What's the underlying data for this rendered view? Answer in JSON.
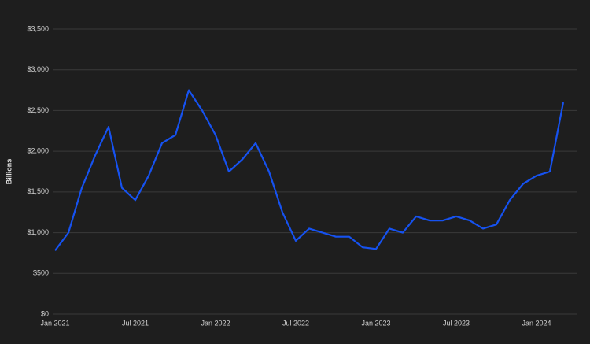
{
  "chart_data": {
    "type": "line",
    "y_label": "Billions",
    "x": [
      "2021-01",
      "2021-02",
      "2021-03",
      "2021-04",
      "2021-05",
      "2021-06",
      "2021-07",
      "2021-08",
      "2021-09",
      "2021-10",
      "2021-11",
      "2021-12",
      "2022-01",
      "2022-02",
      "2022-03",
      "2022-04",
      "2022-05",
      "2022-06",
      "2022-07",
      "2022-08",
      "2022-09",
      "2022-10",
      "2022-11",
      "2022-12",
      "2023-01",
      "2023-02",
      "2023-03",
      "2023-04",
      "2023-05",
      "2023-06",
      "2023-07",
      "2023-08",
      "2023-09",
      "2023-10",
      "2023-11",
      "2023-12",
      "2024-01",
      "2024-02",
      "2024-03"
    ],
    "series": [
      {
        "color": "#1652f0",
        "values": [
          780,
          1000,
          1550,
          1950,
          2300,
          1550,
          1400,
          1700,
          2100,
          2200,
          2750,
          2500,
          2200,
          1750,
          1900,
          2100,
          1750,
          1250,
          900,
          1050,
          1000,
          950,
          950,
          820,
          800,
          1050,
          1000,
          1200,
          1150,
          1150,
          1200,
          1150,
          1050,
          1100,
          1400,
          1600,
          1700,
          1750,
          2600
        ]
      }
    ],
    "xlim": [
      "2021-01",
      "2024-04"
    ],
    "xticks": [
      {
        "value": "2021-01",
        "label": "Jan 2021"
      },
      {
        "value": "2021-07",
        "label": "Jul 2021"
      },
      {
        "value": "2022-01",
        "label": "Jan 2022"
      },
      {
        "value": "2022-07",
        "label": "Jul 2022"
      },
      {
        "value": "2023-01",
        "label": "Jan 2023"
      },
      {
        "value": "2023-07",
        "label": "Jul 2023"
      },
      {
        "value": "2024-01",
        "label": "Jan 2024"
      }
    ],
    "ylim": [
      0,
      3500
    ],
    "yticks": [
      {
        "value": 0,
        "label": "$0"
      },
      {
        "value": 500,
        "label": "$500"
      },
      {
        "value": 1000,
        "label": "$1,000"
      },
      {
        "value": 1500,
        "label": "$1,500"
      },
      {
        "value": 2000,
        "label": "$2,000"
      },
      {
        "value": 2500,
        "label": "$2,500"
      },
      {
        "value": 3000,
        "label": "$3,000"
      },
      {
        "value": 3500,
        "label": "$3,500"
      }
    ],
    "grid": true
  }
}
